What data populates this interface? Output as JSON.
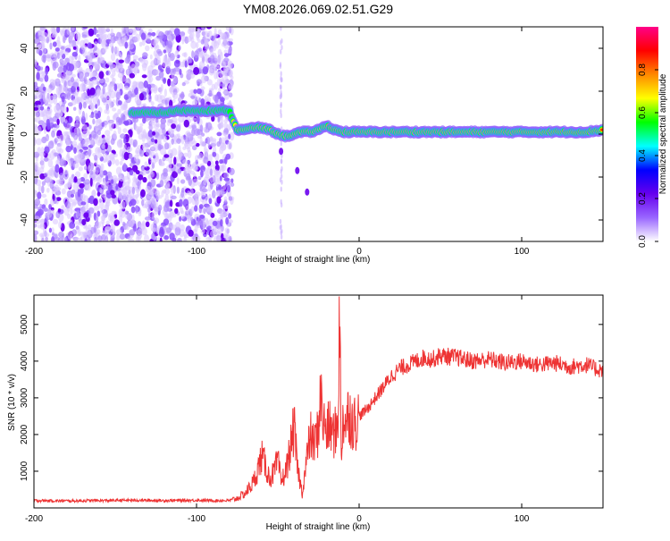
{
  "title": "YM08.2026.069.02.51.G29",
  "chart_data": [
    {
      "type": "heatmap",
      "title": "YM08.2026.069.02.51.G29",
      "xlabel": "Height of straight line (km)",
      "ylabel": "Frequency (Hz)",
      "xlim": [
        -200,
        150
      ],
      "ylim": [
        -50,
        50
      ],
      "xticks": [
        -200,
        -100,
        0,
        100
      ],
      "xtick_labels": [
        "-200",
        "-100",
        "0",
        "100"
      ],
      "yticks": [
        -40,
        -20,
        0,
        20,
        40
      ],
      "ytick_labels": [
        "-40",
        "-20",
        "0",
        "20",
        "40"
      ],
      "colorbar": {
        "label": "Normalized spectral amplitude",
        "range": [
          0.0,
          1.0
        ],
        "ticks": [
          0.0,
          0.2,
          0.4,
          0.6,
          0.8
        ],
        "tick_labels": [
          "0.0",
          "0.2",
          "0.4",
          "0.6",
          "0.8"
        ],
        "colormap": [
          "#ffffff",
          "#9966ff",
          "#6600ee",
          "#0000ff",
          "#00ffff",
          "#00ff00",
          "#ffff00",
          "#ff8800",
          "#ff0000",
          "#ff0088"
        ]
      },
      "noise_region_x": [
        -200,
        -78
      ],
      "ridge": {
        "x": [
          -140,
          -130,
          -120,
          -110,
          -100,
          -90,
          -80,
          -75,
          -70,
          -65,
          -60,
          -55,
          -50,
          -45,
          -40,
          -35,
          -30,
          -25,
          -20,
          -15,
          -10,
          0,
          20,
          40,
          60,
          80,
          100,
          120,
          140,
          150
        ],
        "y": [
          10,
          10,
          10,
          11,
          11,
          11,
          11,
          2,
          2,
          3,
          3,
          2,
          0,
          -1,
          0,
          1,
          1,
          2,
          4,
          2,
          1,
          1,
          1,
          1,
          1,
          1,
          1,
          1,
          1,
          2
        ]
      },
      "outliers": [
        {
          "x": -38,
          "y": -17
        },
        {
          "x": -48,
          "y": -8
        },
        {
          "x": -32,
          "y": -27
        }
      ]
    },
    {
      "type": "line",
      "xlabel": "Height of straight line (km)",
      "ylabel": "SNR (10 * v/v)",
      "xlim": [
        -200,
        150
      ],
      "ylim": [
        0,
        5800
      ],
      "xticks": [
        -200,
        -100,
        0,
        100
      ],
      "xtick_labels": [
        "-200",
        "-100",
        "0",
        "100"
      ],
      "yticks": [
        1000,
        2000,
        3000,
        4000,
        5000
      ],
      "ytick_labels": [
        "1000",
        "2000",
        "3000",
        "4000",
        "5000"
      ],
      "color": "#ee3333",
      "series": [
        {
          "name": "SNR",
          "x": [
            -200,
            -180,
            -160,
            -140,
            -120,
            -100,
            -90,
            -80,
            -75,
            -70,
            -65,
            -62,
            -60,
            -58,
            -55,
            -52,
            -50,
            -48,
            -45,
            -42,
            -40,
            -38,
            -35,
            -32,
            -30,
            -28,
            -25,
            -24,
            -22,
            -20,
            -18,
            -16,
            -14,
            -13,
            -12,
            -11,
            -10,
            -8,
            -6,
            -5,
            -3,
            0,
            5,
            10,
            15,
            20,
            25,
            30,
            35,
            40,
            45,
            50,
            60,
            70,
            80,
            90,
            100,
            110,
            120,
            130,
            140,
            145,
            150
          ],
          "y": [
            200,
            190,
            200,
            210,
            200,
            210,
            200,
            200,
            260,
            400,
            700,
            1100,
            1400,
            1200,
            800,
            1000,
            1300,
            700,
            1000,
            1700,
            2200,
            1100,
            400,
            1400,
            2000,
            1700,
            2100,
            3200,
            2300,
            2100,
            2200,
            2000,
            2100,
            2500,
            5700,
            1200,
            2500,
            2300,
            2700,
            2400,
            2300,
            2500,
            2700,
            3000,
            3300,
            3600,
            3800,
            3900,
            4000,
            4100,
            4050,
            4150,
            4100,
            4000,
            4050,
            3950,
            4000,
            3900,
            3950,
            3850,
            3900,
            3800,
            3750
          ]
        }
      ]
    }
  ]
}
